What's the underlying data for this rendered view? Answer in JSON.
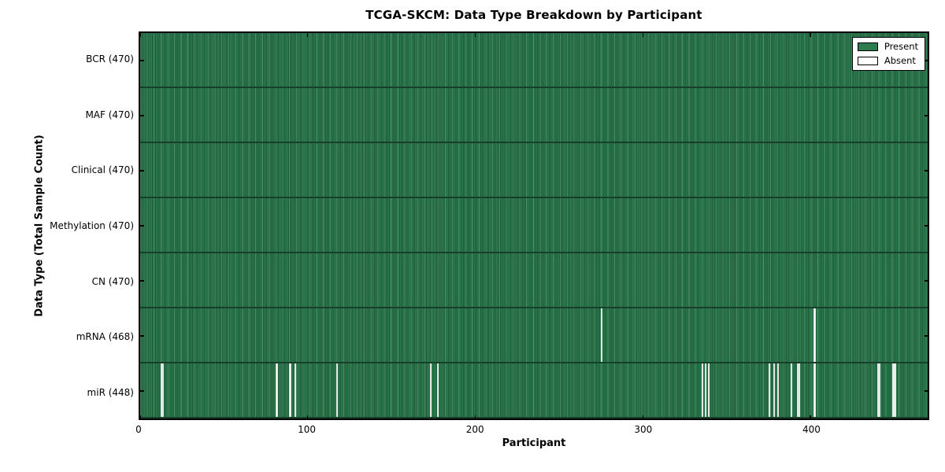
{
  "chart_data": {
    "type": "heatmap",
    "title": "TCGA-SKCM: Data Type Breakdown by Participant",
    "xlabel": "Participant",
    "ylabel": "Data Type (Total Sample Count)",
    "xlim": [
      0,
      470
    ],
    "n_participants": 470,
    "x_ticks": [
      0,
      100,
      200,
      300,
      400
    ],
    "grid": false,
    "legend_position": "upper right",
    "colors": {
      "present": "#2c7c4f",
      "present_edge": "#1e5b39",
      "absent": "#f4f4f2",
      "row_separator": "#16402a",
      "frame": "#000000"
    },
    "legend": [
      {
        "label": "Present",
        "color": "#2c7c4f"
      },
      {
        "label": "Absent",
        "color": "#ffffff"
      }
    ],
    "rows": [
      {
        "name": "bcr",
        "label": "BCR (470)",
        "present_count": 470,
        "absent_at": []
      },
      {
        "name": "maf",
        "label": "MAF (470)",
        "present_count": 470,
        "absent_at": []
      },
      {
        "name": "clinical",
        "label": "Clinical (470)",
        "present_count": 470,
        "absent_at": []
      },
      {
        "name": "methylation",
        "label": "Methylation (470)",
        "present_count": 470,
        "absent_at": []
      },
      {
        "name": "cn",
        "label": "CN (470)",
        "present_count": 470,
        "absent_at": []
      },
      {
        "name": "mrna",
        "label": "mRNA (468)",
        "present_count": 468,
        "absent_at": [
          275,
          402
        ]
      },
      {
        "name": "mir",
        "label": "miR (448)",
        "present_count": 448,
        "absent_at": [
          12,
          13,
          81,
          89,
          92,
          117,
          173,
          177,
          335,
          337,
          339,
          375,
          378,
          380,
          388,
          392,
          393,
          402,
          440,
          441,
          449,
          450
        ]
      }
    ]
  }
}
